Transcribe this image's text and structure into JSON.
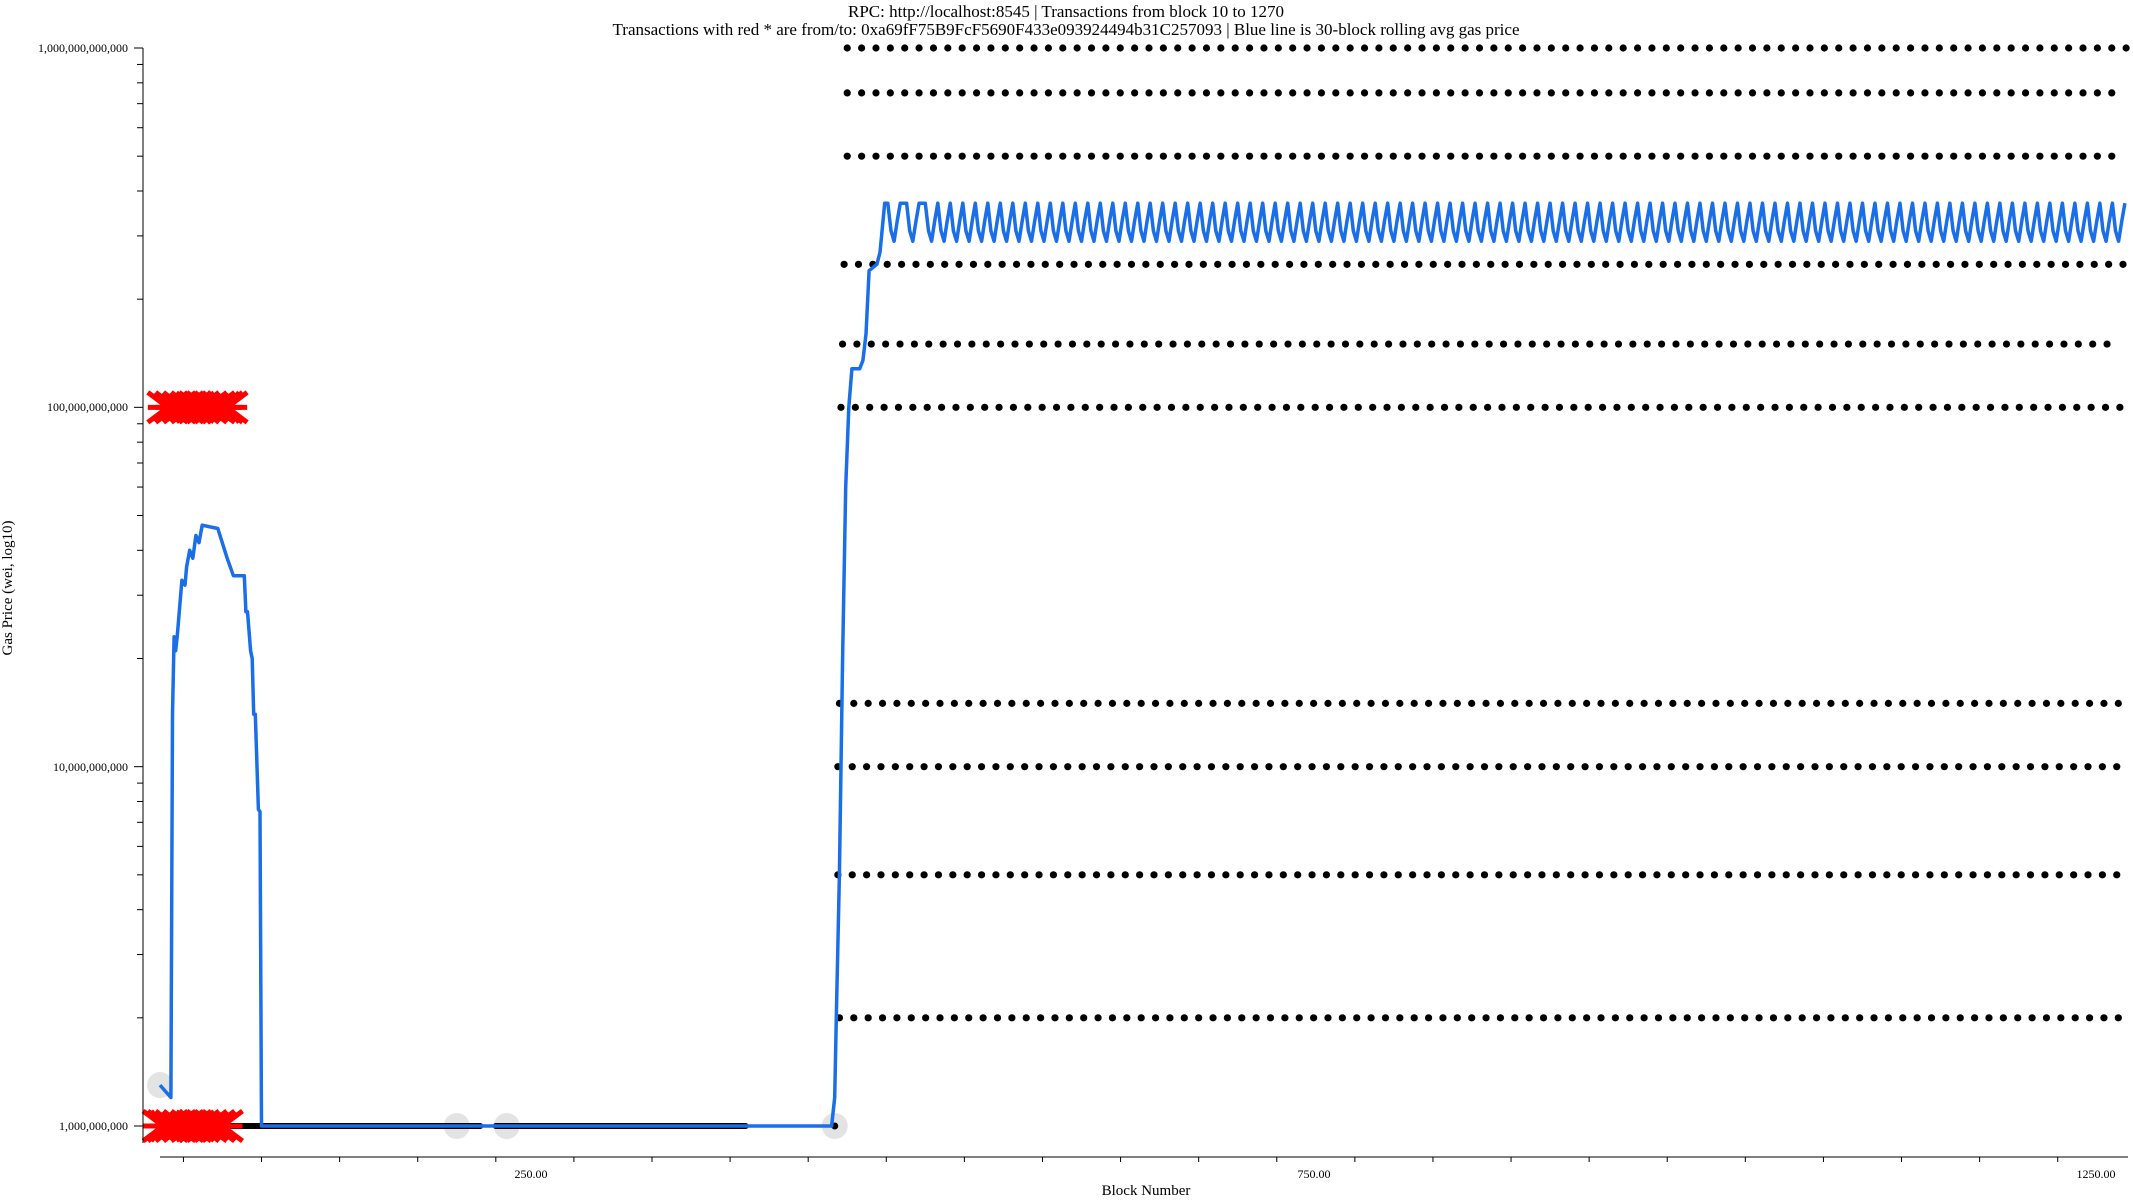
{
  "chart_data": {
    "type": "scatter",
    "title": "RPC: http://localhost:8545 | Transactions from block 10 to 1270",
    "subtitle": "Transactions with red * are from/to: 0xa69fF75B9FcF5690F433e093924494b31C257093 | Blue line is 30-block rolling avg gas price",
    "xlabel": "Block Number",
    "ylabel": "Gas Price (wei, log10)",
    "x_scale": "linear",
    "y_scale": "log10",
    "xlim": [
      10,
      1270
    ],
    "ylim": [
      1000000000,
      1000000000000
    ],
    "x_tick_labels": [
      "250.00",
      "750.00",
      "1250.00"
    ],
    "x_tick_values": [
      250,
      750,
      1250
    ],
    "y_tick_labels": [
      "1,000,000,000",
      "10,000,000,000",
      "100,000,000,000",
      "1,000,000,000,000"
    ],
    "y_tick_values": [
      1000000000,
      10000000000,
      100000000000,
      1000000000000
    ],
    "grid": false,
    "colors": {
      "tx_point": "#000000",
      "rolling_avg": "#1a6ee8",
      "highlight_marker": "#ff0000",
      "highlight_halo": "#d9d9d9"
    },
    "series": [
      {
        "name": "Blue line is 30-block rolling avg gas price",
        "type": "line",
        "points": [
          [
            10,
            1300000000
          ],
          [
            17,
            1200000000
          ],
          [
            18,
            14000000000
          ],
          [
            19,
            23000000000
          ],
          [
            20,
            21000000000
          ],
          [
            21,
            23000000000
          ],
          [
            24,
            33000000000
          ],
          [
            26,
            32000000000
          ],
          [
            27,
            36000000000
          ],
          [
            29,
            40000000000
          ],
          [
            31,
            38000000000
          ],
          [
            33,
            44000000000
          ],
          [
            35,
            42000000000
          ],
          [
            37,
            47000000000
          ],
          [
            47,
            46000000000
          ],
          [
            53,
            38000000000
          ],
          [
            57,
            34000000000
          ],
          [
            61,
            34000000000
          ],
          [
            64,
            34000000000
          ],
          [
            65,
            27000000000
          ],
          [
            66,
            27000000000
          ],
          [
            68,
            21000000000
          ],
          [
            69,
            20000000000
          ],
          [
            70,
            14000000000
          ],
          [
            71,
            14000000000
          ],
          [
            73,
            7600000000
          ],
          [
            74,
            7500000000
          ],
          [
            75,
            1000000000
          ],
          [
            440,
            1000000000
          ],
          [
            442,
            1200000000
          ],
          [
            443,
            2000000000
          ],
          [
            445,
            5000000000
          ],
          [
            447,
            20000000000
          ],
          [
            449,
            60000000000
          ],
          [
            451,
            100000000000
          ],
          [
            453,
            128000000000
          ],
          [
            458,
            128000000000
          ],
          [
            460,
            135000000000
          ],
          [
            462,
            160000000000
          ],
          [
            464,
            240000000000
          ],
          [
            469,
            250000000000
          ],
          [
            471,
            270000000000
          ],
          [
            474,
            370000000000
          ],
          [
            476,
            370000000000
          ],
          [
            478,
            310000000000
          ],
          [
            480,
            290000000000
          ],
          [
            482,
            330000000000
          ],
          [
            484,
            370000000000
          ],
          [
            488,
            370000000000
          ],
          [
            490,
            310000000000
          ],
          [
            492,
            290000000000
          ],
          [
            494,
            330000000000
          ],
          [
            496,
            370000000000
          ],
          [
            500,
            370000000000
          ],
          [
            502,
            310000000000
          ],
          [
            504,
            290000000000
          ],
          [
            506,
            330000000000
          ],
          [
            508,
            370000000000
          ],
          [
            1270,
            370000000000
          ]
        ]
      },
      {
        "name": "transactions",
        "type": "scatter",
        "note_rows": [
          {
            "gas_price": 1000000000000,
            "x_start": 450,
            "x_end": 1270,
            "step": 9.2
          },
          {
            "gas_price": 750000000000,
            "x_start": 450,
            "x_end": 1268,
            "step": 9.2
          },
          {
            "gas_price": 500000000000,
            "x_start": 450,
            "x_end": 1268,
            "step": 9.2
          },
          {
            "gas_price": 250000000000,
            "x_start": 448,
            "x_end": 1268,
            "step": 9.2
          },
          {
            "gas_price": 150000000000,
            "x_start": 447,
            "x_end": 1265,
            "step": 9.2
          },
          {
            "gas_price": 100000000000,
            "x_start": 446,
            "x_end": 1265,
            "step": 9.2
          },
          {
            "gas_price": 15000000000,
            "x_start": 445,
            "x_end": 1265,
            "step": 9.2
          },
          {
            "gas_price": 10000000000,
            "x_start": 444,
            "x_end": 1265,
            "step": 9.2
          },
          {
            "gas_price": 5000000000,
            "x_start": 444,
            "x_end": 1270,
            "step": 9.2
          },
          {
            "gas_price": 2000000000,
            "x_start": 445,
            "x_end": 1270,
            "step": 9.2
          }
        ],
        "low_band": {
          "gas_price": 1000000000,
          "segments": [
            [
              15,
              215
            ],
            [
              225,
              385
            ],
            [
              442,
              442
            ]
          ]
        }
      },
      {
        "name": "red * from/to 0xa69fF75B9FcF5690F433e093924494b31C257093",
        "type": "scatter",
        "points": [
          [
            15,
            100000000000
          ],
          [
            20,
            100000000000
          ],
          [
            25,
            100000000000
          ],
          [
            30,
            100000000000
          ],
          [
            35,
            100000000000
          ],
          [
            40,
            100000000000
          ],
          [
            45,
            100000000000
          ],
          [
            50,
            100000000000
          ],
          [
            53,
            100000000000
          ],
          [
            12,
            1000000000
          ],
          [
            15,
            1000000000
          ],
          [
            20,
            1000000000
          ],
          [
            25,
            1000000000
          ],
          [
            30,
            1000000000
          ],
          [
            35,
            1000000000
          ],
          [
            40,
            1000000000
          ],
          [
            45,
            1000000000
          ],
          [
            50,
            1000000000
          ]
        ]
      }
    ]
  }
}
